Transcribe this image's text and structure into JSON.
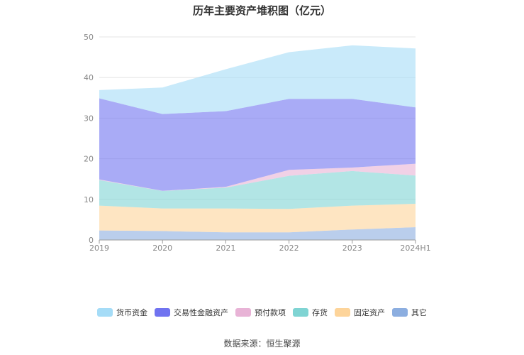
{
  "chart_data": {
    "type": "area",
    "stacked": true,
    "title": "历年主要资产堆积图（亿元）",
    "categories": [
      "2019",
      "2020",
      "2021",
      "2022",
      "2023",
      "2024H1"
    ],
    "ylim": [
      0,
      50
    ],
    "yticks": [
      0,
      10,
      20,
      30,
      40,
      50
    ],
    "grid": true,
    "legend_position": "bottom",
    "series": [
      {
        "name": "其它",
        "color": "#8caee0",
        "values": [
          2.33,
          2.2,
          1.87,
          1.87,
          2.57,
          3.15
        ]
      },
      {
        "name": "固定资产",
        "color": "#fdd49a",
        "values": [
          6.12,
          5.56,
          5.89,
          5.77,
          5.88,
          5.77
        ]
      },
      {
        "name": "存货",
        "color": "#7fd4d3",
        "values": [
          6.3,
          4.31,
          5.13,
          8.16,
          8.52,
          6.94
        ]
      },
      {
        "name": "预付款项",
        "color": "#e8b3d6",
        "values": [
          0.15,
          0.03,
          0.21,
          1.46,
          0.87,
          2.92
        ]
      },
      {
        "name": "交易性金融资产",
        "color": "#7073f0",
        "values": [
          19.97,
          18.92,
          18.62,
          17.49,
          16.91,
          13.87
        ]
      },
      {
        "name": "货币资金",
        "color": "#a5dcf7",
        "values": [
          2.03,
          6.53,
          10.32,
          11.49,
          13.18,
          14.52
        ]
      }
    ],
    "legend_order": [
      "货币资金",
      "交易性金融资产",
      "预付款项",
      "存货",
      "固定资产",
      "其它"
    ]
  },
  "source": "数据来源：恒生聚源"
}
